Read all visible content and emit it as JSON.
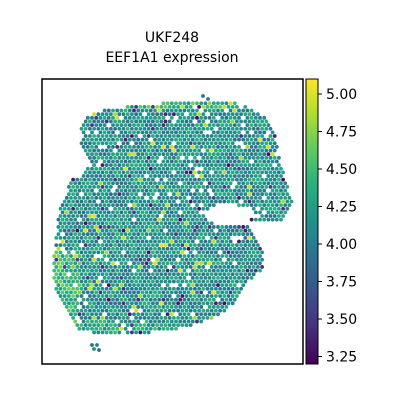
{
  "chart_data": {
    "type": "scatter",
    "title_line1": "UKF248",
    "title_line2": "EEF1A1 expression",
    "xlabel": "",
    "ylabel": "",
    "grid": false,
    "colorbar": {
      "colormap": "viridis",
      "range": [
        3.2,
        5.1
      ],
      "ticks": [
        {
          "value": 3.25,
          "label": "3.25"
        },
        {
          "value": 3.5,
          "label": "3.50"
        },
        {
          "value": 3.75,
          "label": "3.75"
        },
        {
          "value": 4.0,
          "label": "4.00"
        },
        {
          "value": 4.25,
          "label": "4.25"
        },
        {
          "value": 4.5,
          "label": "4.50"
        },
        {
          "value": 4.75,
          "label": "4.75"
        },
        {
          "value": 5.0,
          "label": "5.00"
        }
      ]
    },
    "spot_values_summary": {
      "typical": 4.15,
      "min": 3.25,
      "max": 5.0,
      "brighter_regions": "lower-left edge and top edge"
    }
  }
}
